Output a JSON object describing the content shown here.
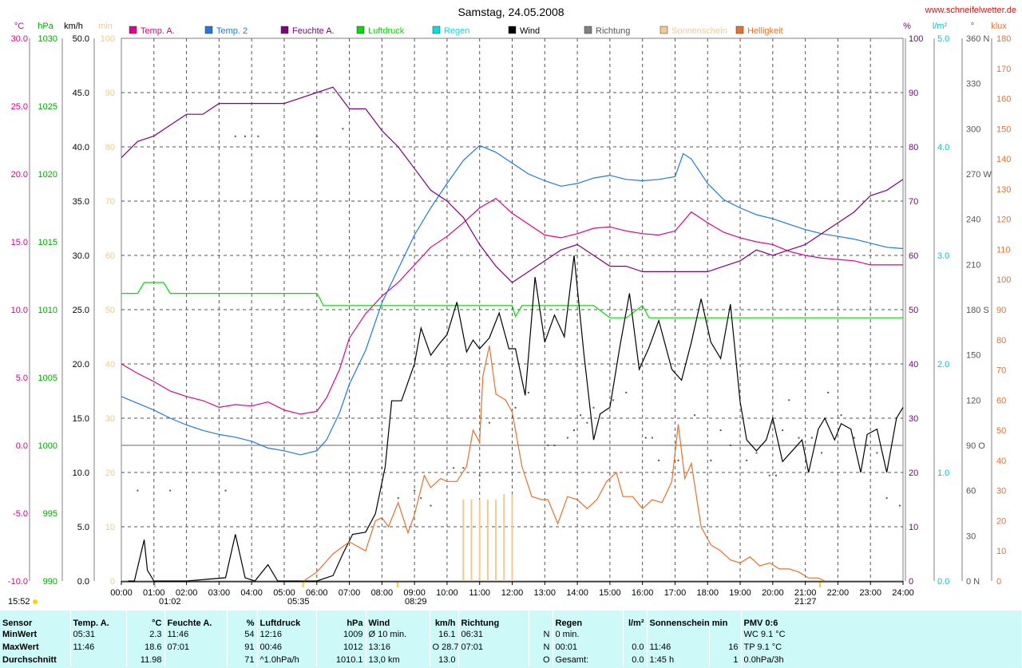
{
  "header": {
    "title": "Samstag, 24.05.2008",
    "website": "www.schneifelwetter.de"
  },
  "axes": {
    "temp": {
      "unit": "°C",
      "color": "#e0008a",
      "ticks": [
        "30.0",
        "25.0",
        "20.0",
        "15.0",
        "10.0",
        "5.0",
        "0.0",
        "-5.0",
        "-10.0"
      ]
    },
    "press": {
      "unit": "hPa",
      "color": "#00aa00",
      "ticks": [
        "1030",
        "1025",
        "1020",
        "1015",
        "1010",
        "1005",
        "1000",
        "995",
        "990"
      ]
    },
    "wind": {
      "unit": "km/h",
      "color": "#000000",
      "ticks": [
        "50.0",
        "45.0",
        "40.0",
        "35.0",
        "30.0",
        "25.0",
        "20.0",
        "15.0",
        "10.0",
        "5.0",
        "0.0"
      ]
    },
    "sun": {
      "unit": "min",
      "color": "#f5c98a",
      "ticks": [
        "100",
        "90",
        "80",
        "70",
        "60",
        "50",
        "40",
        "30",
        "20",
        "10",
        "0"
      ]
    },
    "hum": {
      "unit": "%",
      "color": "#800080",
      "ticks": [
        "100",
        "90",
        "80",
        "70",
        "60",
        "50",
        "40",
        "30",
        "20",
        "10",
        "0"
      ]
    },
    "rain": {
      "unit": "l/m²",
      "color": "#00c8c8",
      "ticks": [
        "5.0",
        "4.0",
        "3.0",
        "2.0",
        "1.0",
        "0.0"
      ]
    },
    "dir": {
      "unit": "°",
      "color": "#555555",
      "ticks": [
        "360 N",
        "330",
        "300",
        "270 W",
        "240",
        "210",
        "180 S",
        "150",
        "120",
        "90 O",
        "60",
        "30",
        "0 N"
      ]
    },
    "lux": {
      "unit": "klux",
      "color": "#e8702a",
      "ticks": [
        "180",
        "170",
        "160",
        "150",
        "140",
        "130",
        "120",
        "110",
        "100",
        "90",
        "80",
        "70",
        "60",
        "50",
        "40",
        "30",
        "20",
        "10",
        "0"
      ]
    }
  },
  "x_ticks": [
    "00:00",
    "01:00",
    "02:00",
    "03:00",
    "04:00",
    "05:00",
    "06:00",
    "07:00",
    "08:00",
    "09:00",
    "10:00",
    "11:00",
    "12:00",
    "13:00",
    "14:00",
    "15:00",
    "16:00",
    "17:00",
    "18:00",
    "19:00",
    "20:00",
    "21:00",
    "22:00",
    "23:00",
    "24:00"
  ],
  "x_events": {
    "moonset_time": "15:52",
    "moonrise_min": "01:02",
    "sunrise": "05:35",
    "max_time": "08:29",
    "sunset": "21:27"
  },
  "legend": [
    {
      "label": "Temp. A.",
      "color": "#e0008a"
    },
    {
      "label": "Temp. 2",
      "color": "#1e78e6"
    },
    {
      "label": "Feuchte A.",
      "color": "#800080"
    },
    {
      "label": "Luftdruck",
      "color": "#00dd00"
    },
    {
      "label": "Regen",
      "color": "#00e0e0"
    },
    {
      "label": "Wind",
      "color": "#000000"
    },
    {
      "label": "Richtung",
      "color": "#808080"
    },
    {
      "label": "Sonnenschein",
      "color": "#f5c98a"
    },
    {
      "label": "Helligkeit",
      "color": "#e8702a"
    }
  ],
  "chart_data": {
    "type": "line",
    "title": "Samstag, 24.05.2008",
    "x_unit": "hour of day",
    "xlim": [
      0,
      24
    ],
    "series": [
      {
        "name": "Temp. A.",
        "axis": "temp",
        "ylim": [
          -10,
          30
        ],
        "color": "#e0008a",
        "x": [
          0,
          0.5,
          1,
          1.5,
          2,
          2.5,
          3,
          3.5,
          4,
          4.5,
          5,
          5.5,
          6,
          6.3,
          6.7,
          7,
          7.5,
          8,
          8.5,
          9,
          9.5,
          10,
          10.5,
          11,
          11.5,
          12,
          12.5,
          13,
          13.5,
          14,
          14.5,
          15,
          15.5,
          16,
          16.5,
          17,
          17.5,
          18,
          18.5,
          19,
          19.5,
          20,
          20.5,
          21,
          21.5,
          22,
          22.5,
          23,
          23.5,
          24
        ],
        "y": [
          6,
          5.3,
          4.7,
          4,
          3.6,
          3.3,
          2.8,
          3,
          2.9,
          3.2,
          2.6,
          2.3,
          2.5,
          3.5,
          5.6,
          7.9,
          9.7,
          11,
          12,
          13.3,
          14.6,
          15.4,
          16.4,
          17.5,
          18.2,
          17.1,
          16.3,
          15.5,
          15.3,
          15.6,
          16,
          16.1,
          15.8,
          15.6,
          15.5,
          15.8,
          17.2,
          16.4,
          15.7,
          15.3,
          15,
          14.8,
          14.3,
          14,
          13.8,
          13.7,
          13.6,
          13.3,
          13.3,
          13.3
        ]
      },
      {
        "name": "Temp. 2",
        "axis": "temp",
        "ylim": [
          -10,
          30
        ],
        "color": "#1e78e6",
        "x": [
          0,
          0.5,
          1,
          1.5,
          2,
          2.5,
          3,
          3.5,
          4,
          4.5,
          5,
          5.5,
          6,
          6.3,
          6.7,
          7,
          7.5,
          8,
          8.5,
          9,
          9.5,
          10,
          10.5,
          11,
          11.5,
          12,
          12.5,
          13,
          13.5,
          14,
          14.5,
          15,
          15.5,
          16,
          16.5,
          17,
          17.25,
          17.5,
          18,
          18.5,
          19,
          19.5,
          20,
          20.5,
          21,
          21.5,
          22,
          22.5,
          23,
          23.5,
          24
        ],
        "y": [
          3.6,
          3.1,
          2.6,
          2,
          1.5,
          1.1,
          0.8,
          0.6,
          0.3,
          -0.2,
          -0.4,
          -0.7,
          -0.4,
          0.4,
          2.4,
          4.5,
          7,
          10.5,
          13,
          15.5,
          17.5,
          19.3,
          21,
          22.1,
          21.6,
          20.8,
          20,
          19.5,
          19.1,
          19.3,
          19.7,
          19.9,
          19.6,
          19.5,
          19.6,
          19.8,
          21.5,
          21.1,
          19.3,
          18.1,
          17.5,
          17,
          16.7,
          16.3,
          15.9,
          15.6,
          15.4,
          15.2,
          14.9,
          14.6,
          14.5
        ]
      },
      {
        "name": "Feuchte A.",
        "axis": "hum",
        "ylim": [
          0,
          100
        ],
        "color": "#800080",
        "x": [
          0,
          0.5,
          1,
          1.5,
          2,
          2.5,
          3,
          3.5,
          4,
          4.5,
          5,
          5.5,
          6,
          6.5,
          7,
          7.5,
          8,
          8.5,
          9,
          9.5,
          10,
          10.5,
          11,
          11.5,
          12,
          12.5,
          13,
          13.5,
          14,
          14.5,
          15,
          15.5,
          16,
          16.5,
          17,
          17.5,
          18,
          18.5,
          19,
          19.5,
          20,
          20.5,
          21,
          21.5,
          22,
          22.5,
          23,
          23.5,
          24
        ],
        "y": [
          78,
          81,
          82,
          84,
          86,
          86,
          88,
          88,
          88,
          88,
          88,
          89,
          90,
          91,
          87,
          87,
          83,
          80,
          76,
          72,
          70,
          67,
          62,
          58,
          55,
          57,
          59,
          61,
          62,
          60,
          58,
          58,
          57,
          57,
          57,
          57,
          57,
          58,
          59,
          61,
          60,
          61,
          62,
          64,
          66,
          68,
          71,
          72,
          74
        ]
      },
      {
        "name": "Luftdruck",
        "axis": "press",
        "ylim": [
          990,
          1030
        ],
        "color": "#00dd00",
        "x": [
          0,
          0.5,
          0.7,
          1.3,
          1.5,
          2,
          3,
          4,
          5,
          6,
          6.1,
          6.2,
          7,
          8,
          9,
          10,
          11,
          11.3,
          11.6,
          12,
          12.1,
          12.3,
          12.5,
          13,
          14,
          14.5,
          15,
          15.5,
          16,
          16.2,
          16.3,
          16.5,
          17,
          18,
          19,
          20,
          21,
          22,
          23,
          24
        ],
        "y": [
          1011.2,
          1011.2,
          1012,
          1012,
          1011.2,
          1011.2,
          1011.2,
          1011.2,
          1011.2,
          1011.2,
          1010.8,
          1010.3,
          1010.3,
          1010.3,
          1010.3,
          1010.3,
          1010.3,
          1010.3,
          1010.3,
          1010.3,
          1009.5,
          1010.3,
          1010.3,
          1010.3,
          1010.3,
          1010.3,
          1009.4,
          1009.4,
          1010.3,
          1009.4,
          1009.4,
          1009.4,
          1009.4,
          1009.4,
          1009.4,
          1009.4,
          1009.4,
          1009.4,
          1009.4,
          1009.4
        ]
      },
      {
        "name": "Wind",
        "axis": "wind",
        "ylim": [
          0,
          50
        ],
        "color": "#000000",
        "x": [
          0.2,
          0.4,
          0.7,
          0.8,
          1,
          1.3,
          2,
          3.2,
          3.5,
          3.8,
          4.1,
          4.5,
          4.8,
          6,
          6.5,
          6.8,
          7.1,
          7.5,
          7.8,
          8.1,
          8.3,
          8.6,
          9,
          9.2,
          9.5,
          9.8,
          10,
          10.3,
          10.6,
          10.8,
          11,
          11.3,
          11.6,
          11.9,
          12.1,
          12.4,
          12.7,
          13,
          13.3,
          13.6,
          13.9,
          14.2,
          14.5,
          14.7,
          15,
          15.3,
          15.6,
          15.9,
          16.2,
          16.5,
          16.9,
          17.2,
          17.5,
          17.8,
          18.1,
          18.4,
          18.7,
          19,
          19.2,
          19.5,
          19.8,
          20,
          20.3,
          20.6,
          20.9,
          21.1,
          21.4,
          21.6,
          21.9,
          22.1,
          22.4,
          22.7,
          22.9,
          23.2,
          23.5,
          23.8,
          24
        ],
        "y": [
          0,
          0,
          3.8,
          1,
          0,
          0,
          0,
          0.3,
          4.3,
          0.3,
          0,
          1.5,
          0,
          0,
          0.5,
          2.5,
          4.3,
          4.5,
          6.2,
          10.5,
          16.6,
          16.6,
          20,
          23.3,
          20.8,
          22,
          22.7,
          25.7,
          21.1,
          22.2,
          21.4,
          22.4,
          24.7,
          21.4,
          21.4,
          17.1,
          28,
          22,
          24.5,
          22.5,
          30,
          21,
          13,
          15.4,
          16,
          21.5,
          26.5,
          19.5,
          21.5,
          24,
          19.5,
          18.5,
          22,
          26,
          22,
          20.5,
          25.5,
          16.5,
          13,
          12,
          13,
          15,
          11,
          12,
          13,
          10,
          14,
          15,
          13,
          14.5,
          14,
          10,
          13.5,
          14,
          10,
          15,
          16
        ]
      },
      {
        "name": "Helligkeit",
        "axis": "lux",
        "ylim": [
          0,
          180
        ],
        "color": "#e8702a",
        "x": [
          5.6,
          6,
          6.5,
          7,
          7.5,
          7.8,
          8,
          8.2,
          8.5,
          8.8,
          9,
          9.3,
          9.5,
          9.8,
          10,
          10.3,
          10.6,
          10.8,
          11,
          11.1,
          11.3,
          11.5,
          11.8,
          12,
          12.3,
          12.6,
          12.9,
          13.1,
          13.4,
          13.7,
          14,
          14.3,
          14.6,
          14.9,
          15.2,
          15.4,
          15.7,
          16,
          16.3,
          16.6,
          16.9,
          17.1,
          17.3,
          17.5,
          17.8,
          18.1,
          18.4,
          18.7,
          19,
          19.3,
          19.6,
          19.9,
          20.2,
          20.5,
          20.8,
          21.1,
          21.4,
          21.6
        ],
        "y": [
          0,
          3,
          9,
          13,
          10,
          20,
          21,
          18,
          26,
          16,
          22,
          35,
          31,
          34,
          33,
          33,
          38,
          50,
          46,
          68,
          78,
          62,
          60,
          56,
          38,
          28,
          27,
          27,
          19,
          28,
          27,
          24,
          27,
          33,
          36,
          28,
          28,
          24,
          27,
          26,
          33,
          52,
          34,
          39,
          18,
          12,
          10,
          7,
          6,
          8,
          5,
          6,
          4,
          4,
          3,
          1,
          1,
          0
        ]
      }
    ],
    "sunshine_bars": {
      "name": "Sonnenschein",
      "axis": "sun",
      "ylim": [
        0,
        100
      ],
      "color": "#f5c98a",
      "x": [
        10.5,
        10.75,
        11,
        11.25,
        11.5,
        11.75,
        12
      ],
      "y": [
        15,
        15,
        15,
        15,
        15,
        16,
        16
      ]
    },
    "direction_points": {
      "name": "Richtung",
      "axis": "dir",
      "ylim": [
        0,
        360
      ],
      "color": "#555555",
      "x": [
        0.5,
        1.5,
        3.2,
        3.5,
        3.8,
        4.2,
        6,
        6.8,
        8,
        8.5,
        9,
        9.2,
        9.5,
        10.2,
        10.5,
        11,
        11.3,
        12.1,
        12.5,
        13.1,
        13.3,
        13.7,
        13.9,
        14.1,
        14.3,
        14.5,
        15.1,
        15.5,
        16.1,
        16.3,
        16.5,
        17.1,
        17.6,
        18.1,
        18.4,
        18.7,
        19.2,
        19.5,
        19.9,
        20.1,
        20.3,
        20.5,
        20.8,
        21.2,
        21.5,
        21.7,
        22.1,
        22.5,
        22.9,
        23.2,
        23.5,
        23.9
      ],
      "y": [
        60,
        60,
        60,
        295,
        295,
        295,
        295,
        300,
        75,
        55,
        60,
        55,
        50,
        75,
        75,
        70,
        105,
        115,
        125,
        90,
        90,
        95,
        100,
        110,
        105,
        115,
        120,
        125,
        95,
        95,
        80,
        80,
        110,
        80,
        100,
        90,
        80,
        85,
        70,
        70,
        100,
        120,
        95,
        95,
        85,
        125,
        110,
        95,
        90,
        85,
        55,
        50
      ]
    }
  },
  "stats": {
    "headers": {
      "sensor": "Sensor",
      "temp": "Temp. A.",
      "temp_unit": "°C",
      "hum": "Feuchte A.",
      "hum_unit": "%",
      "press": "Luftdruck",
      "press_unit": "hPa",
      "wind": "Wind",
      "wind_unit": "km/h",
      "dir": "Richtung",
      "rain": "Regen",
      "rain_unit": "l/m²",
      "sun": "Sonnenschein min",
      "pmv": "PMV 0:6"
    },
    "rows": [
      {
        "label": "MinWert",
        "temp_time": "05:31",
        "temp_val": "2.3",
        "hum_time": "11:46",
        "hum_val": "54",
        "press_time": "12:16",
        "press_val": "1009",
        "wind_time": "Ø 10 min.",
        "wind_val": "16.1",
        "dir_time": "06:31",
        "dir_val": "N",
        "rain_time": "0 min.",
        "rain_val": "",
        "sun_time": "",
        "sun_val": "",
        "pmv": "WC 9.1 °C"
      },
      {
        "label": "MaxWert",
        "temp_time": "11:46",
        "temp_val": "18.6",
        "hum_time": "07:01",
        "hum_val": "91",
        "press_time": "00:46",
        "press_val": "1012",
        "wind_time": "13:16",
        "wind_val": "O 28.7",
        "dir_time": "07:01",
        "dir_val": "N",
        "rain_time": "00:01",
        "rain_val": "0.0",
        "sun_time": "11:46",
        "sun_val": "16",
        "pmv": "TP 9.1 °C"
      },
      {
        "label": "Durchschnitt",
        "temp_time": "",
        "temp_val": "11.98",
        "hum_time": "",
        "hum_val": "71",
        "press_time": "^1.0hPa/h",
        "press_val": "1010.1",
        "wind_time": "13,0 km",
        "wind_val": "13.0",
        "dir_time": "",
        "dir_val": "O",
        "rain_time": "Gesamt:",
        "rain_val": "0.0",
        "sun_time": "1:45 h",
        "sun_val": "1",
        "pmv": "0.0hPa/3h"
      }
    ]
  }
}
